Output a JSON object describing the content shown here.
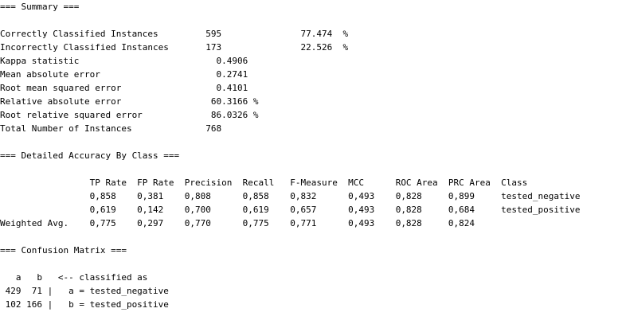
{
  "output": {
    "lines": [
      "=== Summary ===",
      "",
      "Correctly Classified Instances         595               77.474  %",
      "Incorrectly Classified Instances       173               22.526  %",
      "Kappa statistic                          0.4906",
      "Mean absolute error                      0.2741",
      "Root mean squared error                  0.4101",
      "Relative absolute error                 60.3166 %",
      "Root relative squared error             86.0326 %",
      "Total Number of Instances              768",
      "",
      "=== Detailed Accuracy By Class ===",
      "",
      "                 TP Rate  FP Rate  Precision  Recall   F-Measure  MCC      ROC Area  PRC Area  Class",
      "                 0,858    0,381    0,808      0,858    0,832      0,493    0,828     0,899     tested_negative",
      "                 0,619    0,142    0,700      0,619    0,657      0,493    0,828     0,684     tested_positive",
      "Weighted Avg.    0,775    0,297    0,770      0,775    0,771      0,493    0,828     0,824",
      "",
      "=== Confusion Matrix ===",
      "",
      "   a   b   <-- classified as",
      " 429  71 |   a = tested_negative",
      " 102 166 |   b = tested_positive"
    ]
  }
}
